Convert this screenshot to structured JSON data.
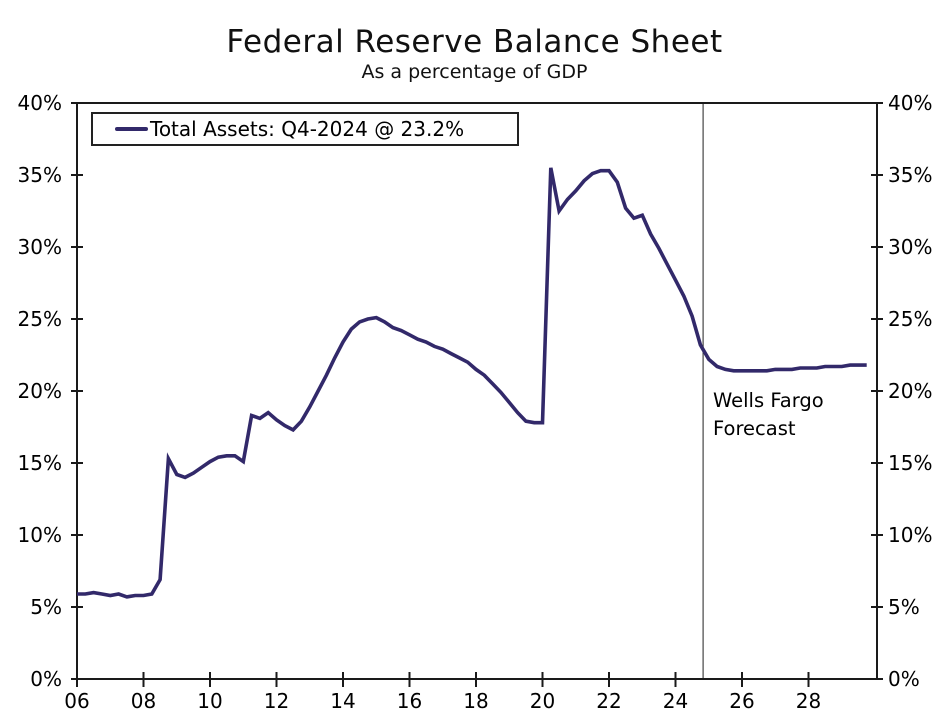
{
  "title": "Federal Reserve Balance Sheet",
  "subtitle": "As a percentage of GDP",
  "legend": {
    "label": "Total Assets: Q4-2024 @ 23.2%"
  },
  "annotation": {
    "text": "Wells Fargo Forecast"
  },
  "colors": {
    "series_line": "#32296a",
    "axis": "#1a1a1a",
    "divider": "#444444"
  },
  "chart_data": {
    "type": "line",
    "title": "Federal Reserve Balance Sheet",
    "subtitle": "As a percentage of GDP",
    "xlabel": "",
    "ylabel": "",
    "grid": false,
    "legend_position": "top-left",
    "xlim": [
      2006,
      2030.06
    ],
    "ylim": [
      0,
      40
    ],
    "x_ticks": [
      2006,
      2008,
      2010,
      2012,
      2014,
      2016,
      2018,
      2020,
      2022,
      2024,
      2026,
      2028
    ],
    "x_tick_labels": [
      "06",
      "08",
      "10",
      "12",
      "14",
      "16",
      "18",
      "20",
      "22",
      "24",
      "26",
      "28"
    ],
    "y_ticks": [
      0,
      5,
      10,
      15,
      20,
      25,
      30,
      35,
      40
    ],
    "y_tick_labels": [
      "0%",
      "5%",
      "10%",
      "15%",
      "20%",
      "25%",
      "30%",
      "35%",
      "40%"
    ],
    "y_labels_both_sides": true,
    "forecast_divider_year": 2024.83,
    "forecast_annotation": "Wells Fargo Forecast",
    "series": [
      {
        "name": "Total Assets: Q4-2024 @ 23.2%",
        "color": "#32296a",
        "x_start": 2006.0,
        "x_step_years": 0.25,
        "x_unit": "quarter",
        "values": [
          5.9,
          5.9,
          6.0,
          5.9,
          5.8,
          5.9,
          5.7,
          5.8,
          5.8,
          5.9,
          6.9,
          15.3,
          14.2,
          14.0,
          14.3,
          14.7,
          15.1,
          15.4,
          15.5,
          15.5,
          15.1,
          18.3,
          18.1,
          18.5,
          18.0,
          17.6,
          17.3,
          17.9,
          18.9,
          20.0,
          21.1,
          22.3,
          23.4,
          24.3,
          24.8,
          25.0,
          25.1,
          24.8,
          24.4,
          24.2,
          23.9,
          23.6,
          23.4,
          23.1,
          22.9,
          22.6,
          22.3,
          22.0,
          21.5,
          21.1,
          20.5,
          19.9,
          19.2,
          18.5,
          17.9,
          17.8,
          17.8,
          35.5,
          32.5,
          33.3,
          33.9,
          34.6,
          35.1,
          35.3,
          35.3,
          34.5,
          32.7,
          32.0,
          32.2,
          30.9,
          29.9,
          28.8,
          27.7,
          26.6,
          25.2,
          23.2,
          22.2,
          21.7,
          21.5,
          21.4,
          21.4,
          21.4,
          21.4,
          21.4,
          21.5,
          21.5,
          21.5,
          21.6,
          21.6,
          21.6,
          21.7,
          21.7,
          21.7,
          21.8,
          21.8,
          21.8
        ]
      }
    ]
  }
}
